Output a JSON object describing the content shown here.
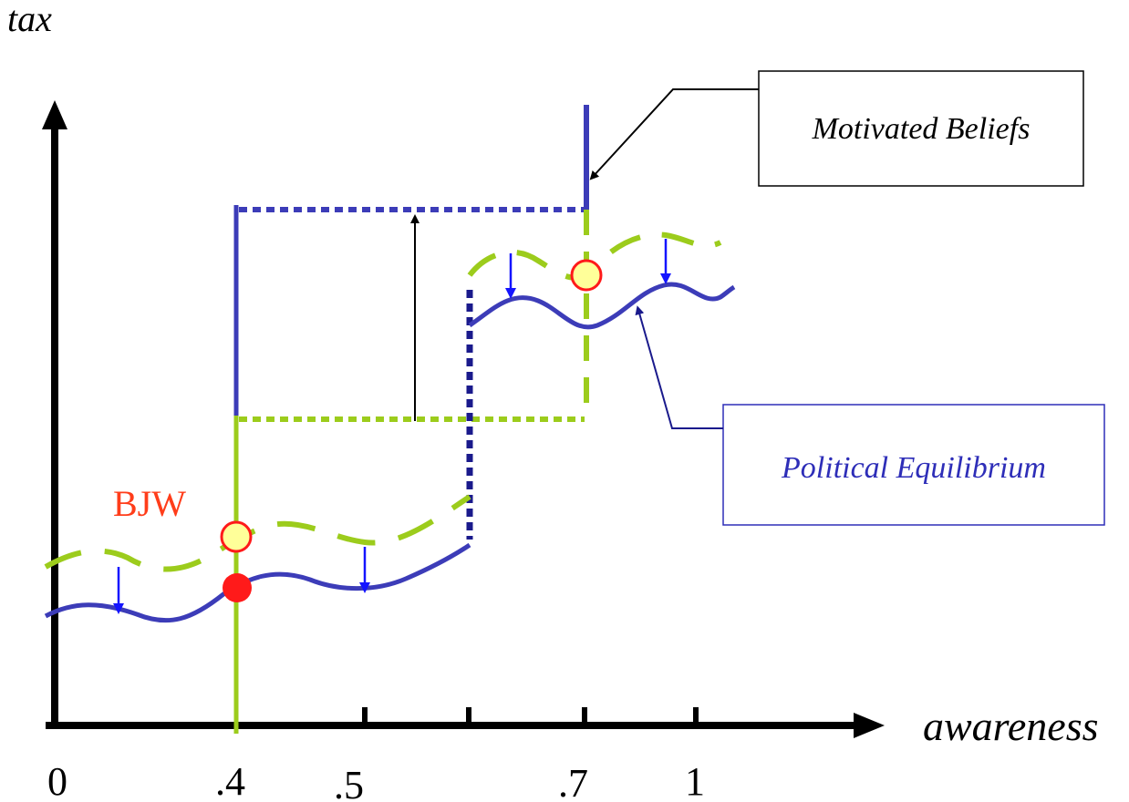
{
  "axes": {
    "y_label": "tax",
    "x_label": "awareness",
    "tick_labels": [
      "0",
      ".4",
      ".5",
      ".7",
      "1"
    ]
  },
  "annotations": {
    "bjw_label": "BJW",
    "motivated_beliefs": "Motivated Beliefs",
    "political_equilibrium": "Political Equilibrium"
  },
  "colors": {
    "axis": "#000000",
    "blue": "#3c3cb8",
    "navy": "#1a1a8c",
    "green": "#9ccc1c",
    "red": "#ff1a1a",
    "bjw_text": "#ff3d1a",
    "marker_fill": "#ffff99",
    "pe_text": "#2e2eb8"
  }
}
